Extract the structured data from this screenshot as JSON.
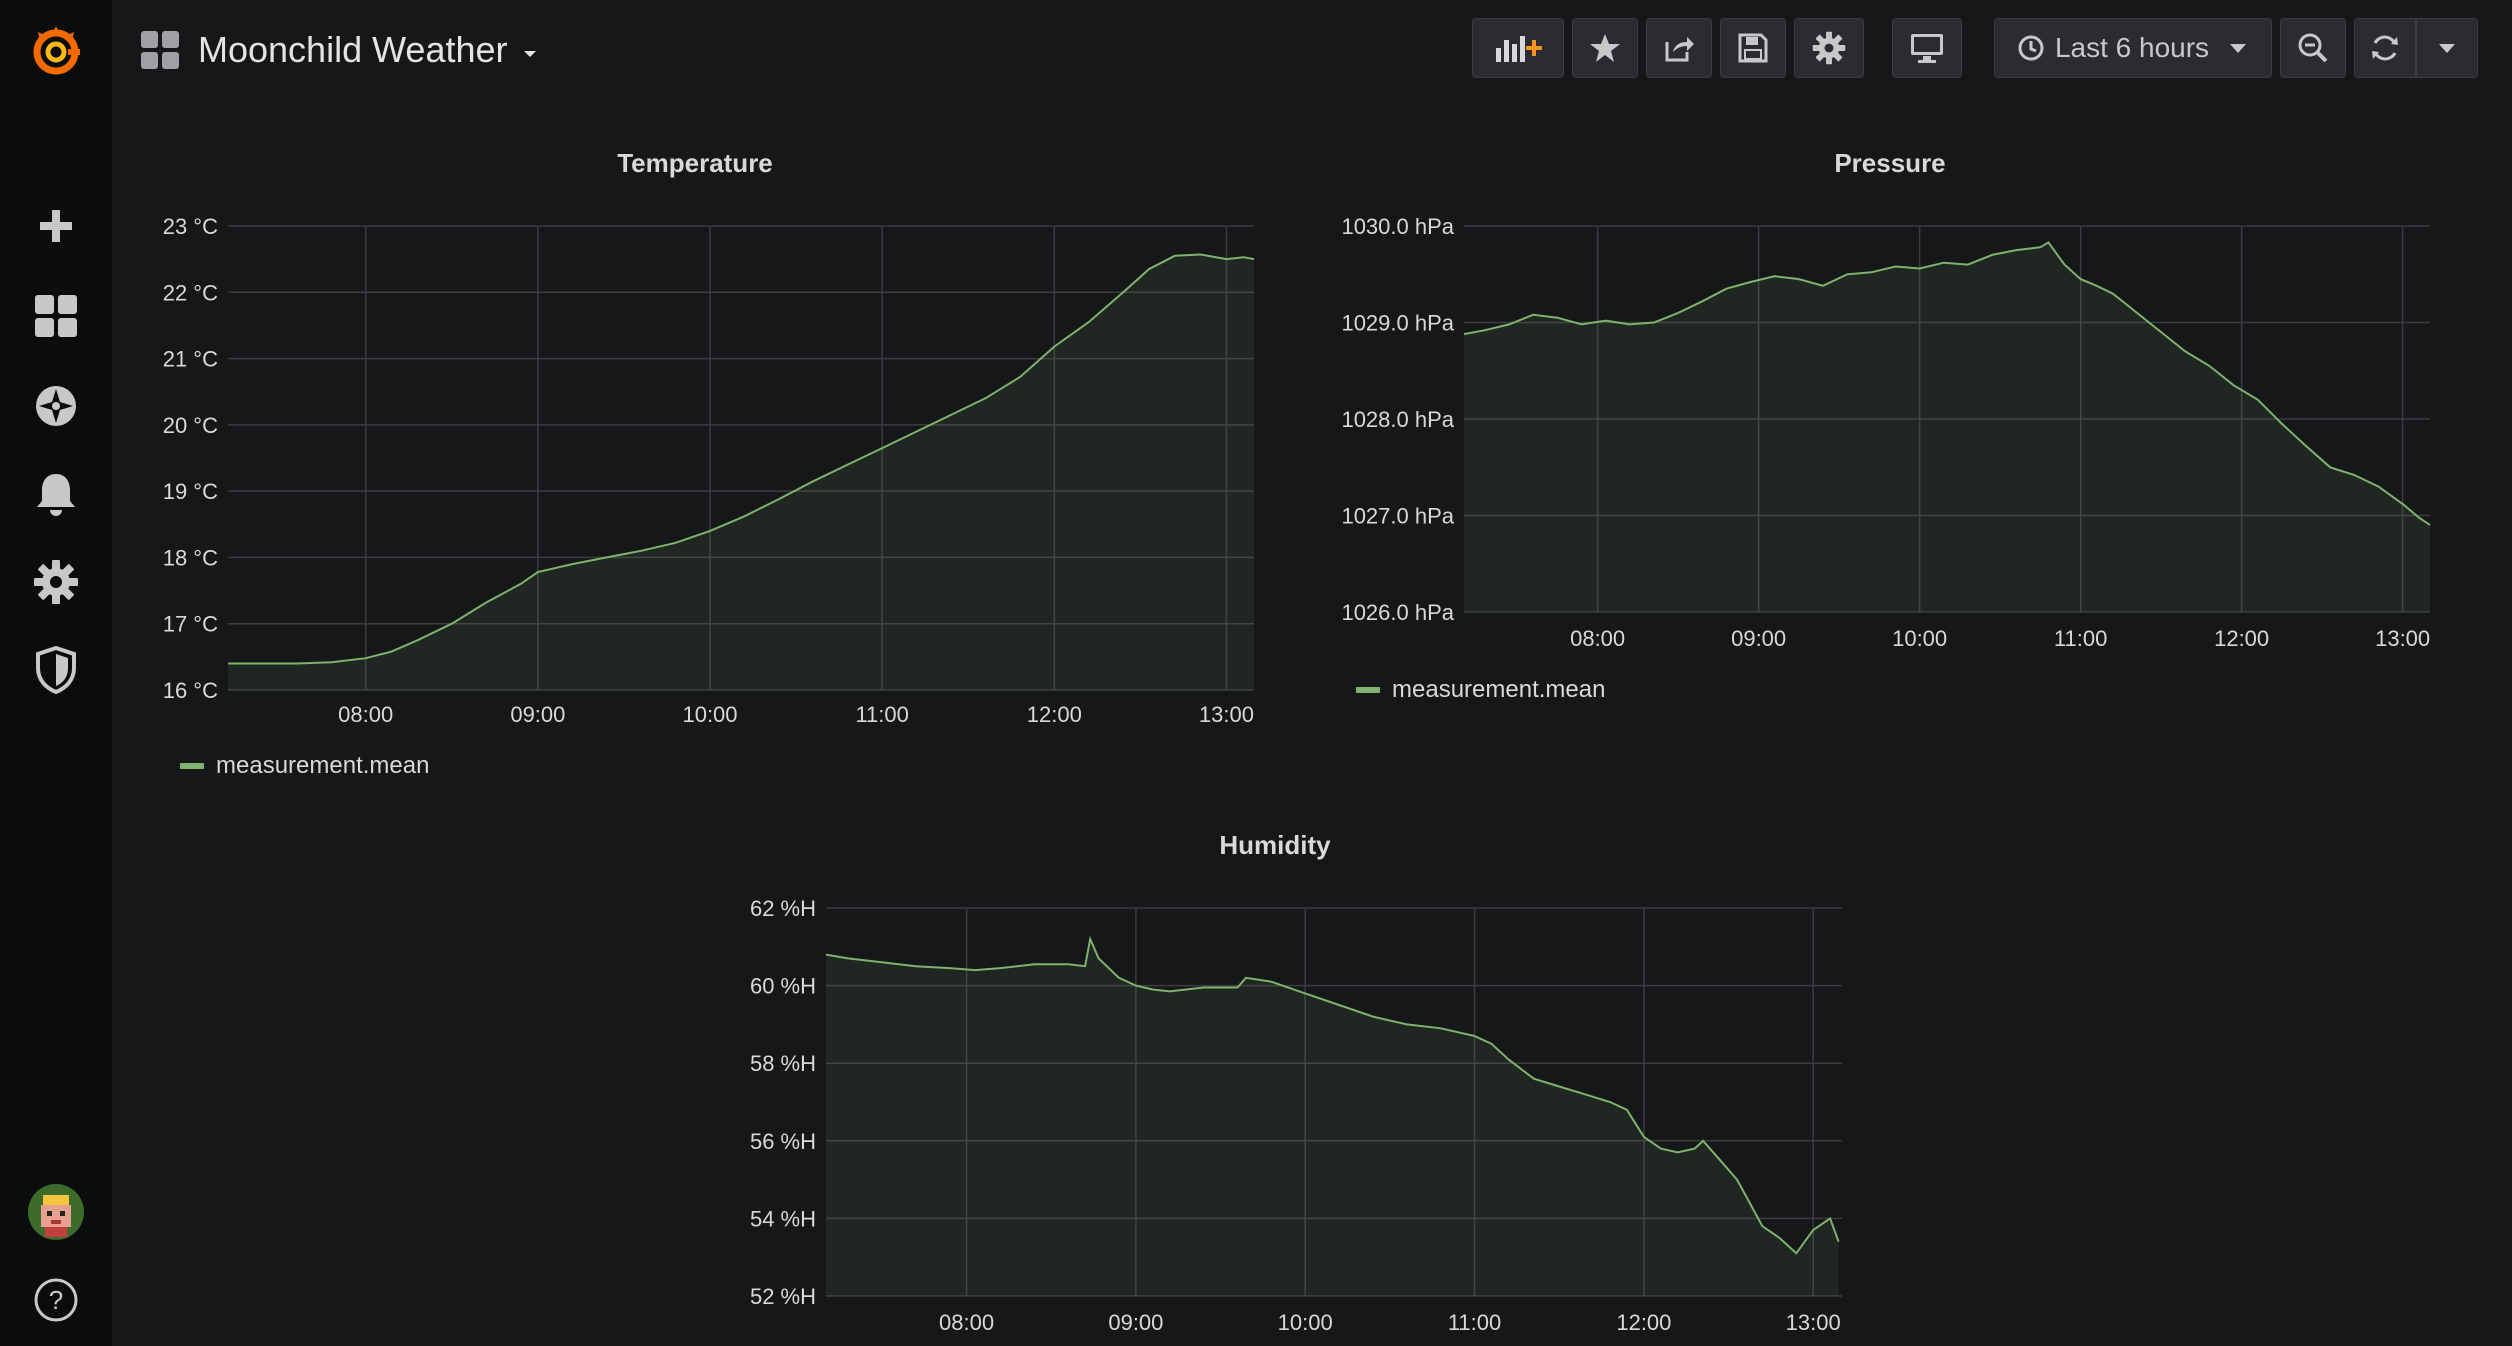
{
  "sidebar": {
    "items": [
      {
        "name": "grafana-logo-icon"
      },
      {
        "name": "plus-icon"
      },
      {
        "name": "dashboards-icon"
      },
      {
        "name": "explore-compass-icon"
      },
      {
        "name": "bell-icon"
      },
      {
        "name": "gear-icon"
      },
      {
        "name": "shield-icon"
      },
      {
        "name": "avatar"
      },
      {
        "name": "help-icon"
      }
    ]
  },
  "header": {
    "title": "Moonchild Weather",
    "time_range": "Last 6 hours",
    "accent": "#f7941d"
  },
  "colors": {
    "series": "#7eb26d",
    "fill": "rgba(126,178,109,0.10)",
    "grid": "#3b3c40"
  },
  "chart_data": [
    {
      "type": "area",
      "title": "Temperature",
      "legend": "measurement.mean",
      "y_tick_labels": [
        "16 °C",
        "17 °C",
        "18 °C",
        "19 °C",
        "20 °C",
        "21 °C",
        "22 °C",
        "23 °C"
      ],
      "x_tick_labels": [
        "08:00",
        "09:00",
        "10:00",
        "11:00",
        "12:00",
        "13:00"
      ],
      "xlim": [
        7.2,
        13.16
      ],
      "ylim": [
        16,
        23
      ],
      "grid": true,
      "series": [
        {
          "name": "measurement.mean",
          "x": [
            7.2,
            7.4,
            7.6,
            7.8,
            8.0,
            8.15,
            8.3,
            8.5,
            8.7,
            8.9,
            9.0,
            9.2,
            9.4,
            9.6,
            9.8,
            10.0,
            10.2,
            10.4,
            10.6,
            10.8,
            11.0,
            11.2,
            11.4,
            11.6,
            11.8,
            11.9,
            12.0,
            12.2,
            12.4,
            12.55,
            12.7,
            12.85,
            13.0,
            13.1,
            13.16
          ],
          "y": [
            16.4,
            16.4,
            16.4,
            16.42,
            16.48,
            16.58,
            16.75,
            17.0,
            17.32,
            17.6,
            17.78,
            17.9,
            18.0,
            18.1,
            18.22,
            18.4,
            18.62,
            18.88,
            19.15,
            19.4,
            19.65,
            19.9,
            20.15,
            20.4,
            20.72,
            20.95,
            21.18,
            21.55,
            22.0,
            22.35,
            22.55,
            22.57,
            22.5,
            22.53,
            22.5
          ]
        }
      ]
    },
    {
      "type": "area",
      "title": "Pressure",
      "legend": "measurement.mean",
      "y_tick_labels": [
        "1026.0 hPa",
        "1027.0 hPa",
        "1028.0 hPa",
        "1029.0 hPa",
        "1030.0 hPa"
      ],
      "x_tick_labels": [
        "08:00",
        "09:00",
        "10:00",
        "11:00",
        "12:00",
        "13:00"
      ],
      "xlim": [
        7.17,
        13.17
      ],
      "ylim": [
        1026,
        1030
      ],
      "grid": true,
      "series": [
        {
          "name": "measurement.mean",
          "x": [
            7.17,
            7.3,
            7.45,
            7.6,
            7.75,
            7.9,
            8.05,
            8.2,
            8.35,
            8.5,
            8.65,
            8.8,
            8.95,
            9.1,
            9.25,
            9.4,
            9.55,
            9.7,
            9.85,
            10.0,
            10.15,
            10.3,
            10.45,
            10.6,
            10.75,
            10.8,
            10.9,
            11.0,
            11.1,
            11.2,
            11.35,
            11.5,
            11.65,
            11.8,
            11.95,
            12.1,
            12.25,
            12.4,
            12.55,
            12.7,
            12.85,
            13.0,
            13.1,
            13.17
          ],
          "y": [
            1028.88,
            1028.92,
            1028.98,
            1029.08,
            1029.05,
            1028.98,
            1029.02,
            1028.98,
            1029.0,
            1029.1,
            1029.22,
            1029.35,
            1029.42,
            1029.48,
            1029.45,
            1029.38,
            1029.5,
            1029.52,
            1029.58,
            1029.56,
            1029.62,
            1029.6,
            1029.7,
            1029.75,
            1029.78,
            1029.83,
            1029.6,
            1029.45,
            1029.38,
            1029.3,
            1029.1,
            1028.9,
            1028.7,
            1028.55,
            1028.35,
            1028.2,
            1027.95,
            1027.72,
            1027.5,
            1027.42,
            1027.3,
            1027.12,
            1026.98,
            1026.9
          ]
        }
      ]
    },
    {
      "type": "area",
      "title": "Humidity",
      "legend": "",
      "y_tick_labels": [
        "52 %H",
        "54 %H",
        "56 %H",
        "58 %H",
        "60 %H",
        "62 %H"
      ],
      "x_tick_labels": [
        "08:00",
        "09:00",
        "10:00",
        "11:00",
        "12:00",
        "13:00"
      ],
      "xlim": [
        7.17,
        13.17
      ],
      "ylim": [
        52,
        62
      ],
      "grid": true,
      "series": [
        {
          "name": "",
          "x": [
            7.17,
            7.3,
            7.5,
            7.7,
            7.9,
            8.05,
            8.2,
            8.4,
            8.6,
            8.7,
            8.73,
            8.78,
            8.9,
            9.0,
            9.1,
            9.2,
            9.4,
            9.6,
            9.65,
            9.8,
            10.0,
            10.2,
            10.4,
            10.6,
            10.8,
            11.0,
            11.1,
            11.2,
            11.35,
            11.5,
            11.65,
            11.8,
            11.9,
            12.0,
            12.1,
            12.2,
            12.3,
            12.35,
            12.45,
            12.55,
            12.6,
            12.7,
            12.8,
            12.9,
            12.95,
            13.0,
            13.1,
            13.15
          ],
          "y": [
            60.8,
            60.7,
            60.6,
            60.5,
            60.45,
            60.4,
            60.45,
            60.55,
            60.55,
            60.5,
            61.2,
            60.7,
            60.2,
            60.0,
            59.9,
            59.85,
            59.95,
            59.95,
            60.2,
            60.1,
            59.8,
            59.5,
            59.2,
            59.0,
            58.9,
            58.7,
            58.5,
            58.1,
            57.6,
            57.4,
            57.2,
            57.0,
            56.8,
            56.1,
            55.8,
            55.7,
            55.8,
            56.0,
            55.5,
            55.0,
            54.6,
            53.8,
            53.5,
            53.1,
            53.4,
            53.7,
            54.0,
            53.4
          ]
        }
      ]
    }
  ]
}
